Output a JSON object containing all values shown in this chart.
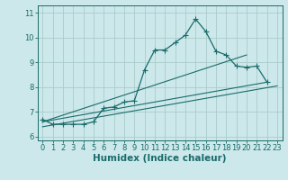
{
  "title": "",
  "xlabel": "Humidex (Indice chaleur)",
  "ylabel": "",
  "bg_color": "#cce8ea",
  "grid_color": "#aacccc",
  "line_color": "#1a6b6b",
  "xlim": [
    -0.5,
    23.5
  ],
  "ylim": [
    5.85,
    11.3
  ],
  "yticks": [
    6,
    7,
    8,
    9,
    10,
    11
  ],
  "xticks": [
    0,
    1,
    2,
    3,
    4,
    5,
    6,
    7,
    8,
    9,
    10,
    11,
    12,
    13,
    14,
    15,
    16,
    17,
    18,
    19,
    20,
    21,
    22,
    23
  ],
  "main_x": [
    0,
    1,
    2,
    3,
    4,
    5,
    6,
    7,
    8,
    9,
    10,
    11,
    12,
    13,
    14,
    15,
    16,
    17,
    18,
    19,
    20,
    21,
    22,
    23
  ],
  "main_y": [
    6.7,
    6.5,
    6.5,
    6.5,
    6.5,
    6.6,
    7.15,
    7.2,
    7.4,
    7.45,
    8.7,
    9.5,
    9.5,
    9.8,
    10.1,
    10.75,
    10.25,
    9.45,
    9.3,
    8.85,
    8.8,
    8.85,
    8.2,
    null
  ],
  "line2_x": [
    0,
    22
  ],
  "line2_y": [
    6.6,
    8.2
  ],
  "line3_x": [
    0,
    20
  ],
  "line3_y": [
    6.6,
    9.3
  ],
  "line4_x": [
    0,
    23
  ],
  "line4_y": [
    6.4,
    8.05
  ],
  "marker_size": 2.5,
  "tick_fontsize": 6,
  "label_fontsize": 7.5
}
